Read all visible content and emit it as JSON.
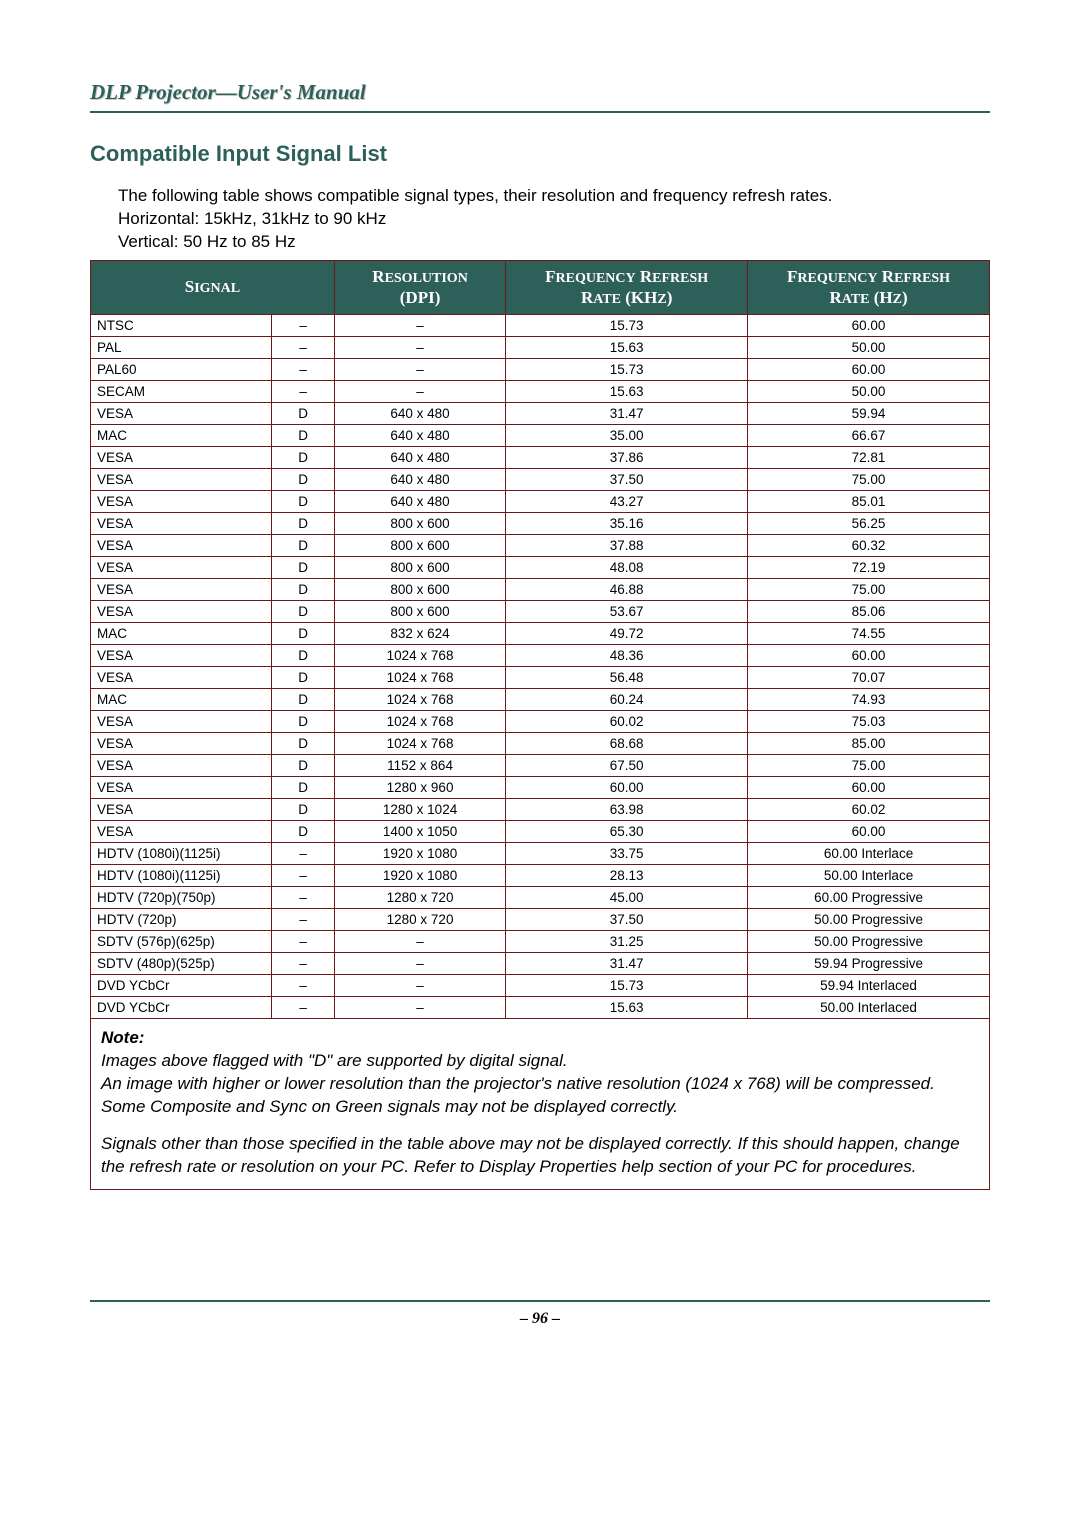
{
  "header": {
    "title": "DLP Projector—User's Manual"
  },
  "section": {
    "title": "Compatible Input Signal List"
  },
  "intro": {
    "line1": "The following table shows compatible signal types, their resolution and frequency refresh rates.",
    "line2": "Horizontal: 15kHz, 31kHz to 90 kHz",
    "line3": "Vertical: 50 Hz to 85 Hz"
  },
  "table": {
    "type": "table",
    "border_color": "#6b1a1a",
    "header_bg": "#2d6059",
    "header_fg": "#ffffff",
    "columns": [
      {
        "label": "Signal",
        "colspan": 2
      },
      {
        "label": "Resolution (DPI)",
        "colspan": 1
      },
      {
        "label": "Frequency Refresh Rate (KHz)",
        "colspan": 1
      },
      {
        "label": "Frequency Refresh Rate (Hz)",
        "colspan": 1
      }
    ],
    "rows": [
      [
        "NTSC",
        "–",
        "–",
        "15.73",
        "60.00"
      ],
      [
        "PAL",
        "–",
        "–",
        "15.63",
        "50.00"
      ],
      [
        "PAL60",
        "–",
        "–",
        "15.73",
        "60.00"
      ],
      [
        "SECAM",
        "–",
        "–",
        "15.63",
        "50.00"
      ],
      [
        "VESA",
        "D",
        "640 x 480",
        "31.47",
        "59.94"
      ],
      [
        "MAC",
        "D",
        "640 x 480",
        "35.00",
        "66.67"
      ],
      [
        "VESA",
        "D",
        "640 x 480",
        "37.86",
        "72.81"
      ],
      [
        "VESA",
        "D",
        "640 x 480",
        "37.50",
        "75.00"
      ],
      [
        "VESA",
        "D",
        "640 x 480",
        "43.27",
        "85.01"
      ],
      [
        "VESA",
        "D",
        "800 x 600",
        "35.16",
        "56.25"
      ],
      [
        "VESA",
        "D",
        "800 x 600",
        "37.88",
        "60.32"
      ],
      [
        "VESA",
        "D",
        "800 x 600",
        "48.08",
        "72.19"
      ],
      [
        "VESA",
        "D",
        "800 x 600",
        "46.88",
        "75.00"
      ],
      [
        "VESA",
        "D",
        "800 x 600",
        "53.67",
        "85.06"
      ],
      [
        "MAC",
        "D",
        "832 x 624",
        "49.72",
        "74.55"
      ],
      [
        "VESA",
        "D",
        "1024 x 768",
        "48.36",
        "60.00"
      ],
      [
        "VESA",
        "D",
        "1024 x 768",
        "56.48",
        "70.07"
      ],
      [
        "MAC",
        "D",
        "1024 x 768",
        "60.24",
        "74.93"
      ],
      [
        "VESA",
        "D",
        "1024 x 768",
        "60.02",
        "75.03"
      ],
      [
        "VESA",
        "D",
        "1024 x 768",
        "68.68",
        "85.00"
      ],
      [
        "VESA",
        "D",
        "1152 x 864",
        "67.50",
        "75.00"
      ],
      [
        "VESA",
        "D",
        "1280 x 960",
        "60.00",
        "60.00"
      ],
      [
        "VESA",
        "D",
        "1280 x 1024",
        "63.98",
        "60.02"
      ],
      [
        "VESA",
        "D",
        "1400 x 1050",
        "65.30",
        "60.00"
      ],
      [
        "HDTV (1080i)(1125i)",
        "–",
        "1920 x 1080",
        "33.75",
        "60.00 Interlace"
      ],
      [
        "HDTV (1080i)(1125i)",
        "–",
        "1920 x 1080",
        "28.13",
        "50.00 Interlace"
      ],
      [
        "HDTV (720p)(750p)",
        "–",
        "1280 x 720",
        "45.00",
        "60.00 Progressive"
      ],
      [
        "HDTV (720p)",
        "–",
        "1280 x 720",
        "37.50",
        "50.00 Progressive"
      ],
      [
        "SDTV (576p)(625p)",
        "–",
        "–",
        "31.25",
        "50.00 Progressive"
      ],
      [
        "SDTV (480p)(525p)",
        "–",
        "–",
        "31.47",
        "59.94 Progressive"
      ],
      [
        "DVD YCbCr",
        "–",
        "–",
        "15.73",
        "59.94 Interlaced"
      ],
      [
        "DVD YCbCr",
        "–",
        "–",
        "15.63",
        "50.00 Interlaced"
      ]
    ]
  },
  "note": {
    "label": "Note:",
    "p1": "Images above flagged with \"D\" are supported by digital signal.",
    "p2": "An image with higher or lower resolution than the projector's native resolution (1024 x 768) will be compressed.",
    "p3": "Some Composite and Sync on Green signals may not be displayed correctly.",
    "p4": "Signals other than those specified in the table above may not be displayed correctly. If this should happen, change the refresh rate or resolution on your PC. Refer to Display Properties help section of your PC for procedures."
  },
  "footer": {
    "page": "– 96 –"
  },
  "colors": {
    "accent": "#2d6059",
    "rule": "#2d6059",
    "table_border": "#6b1a1a",
    "background": "#ffffff"
  }
}
